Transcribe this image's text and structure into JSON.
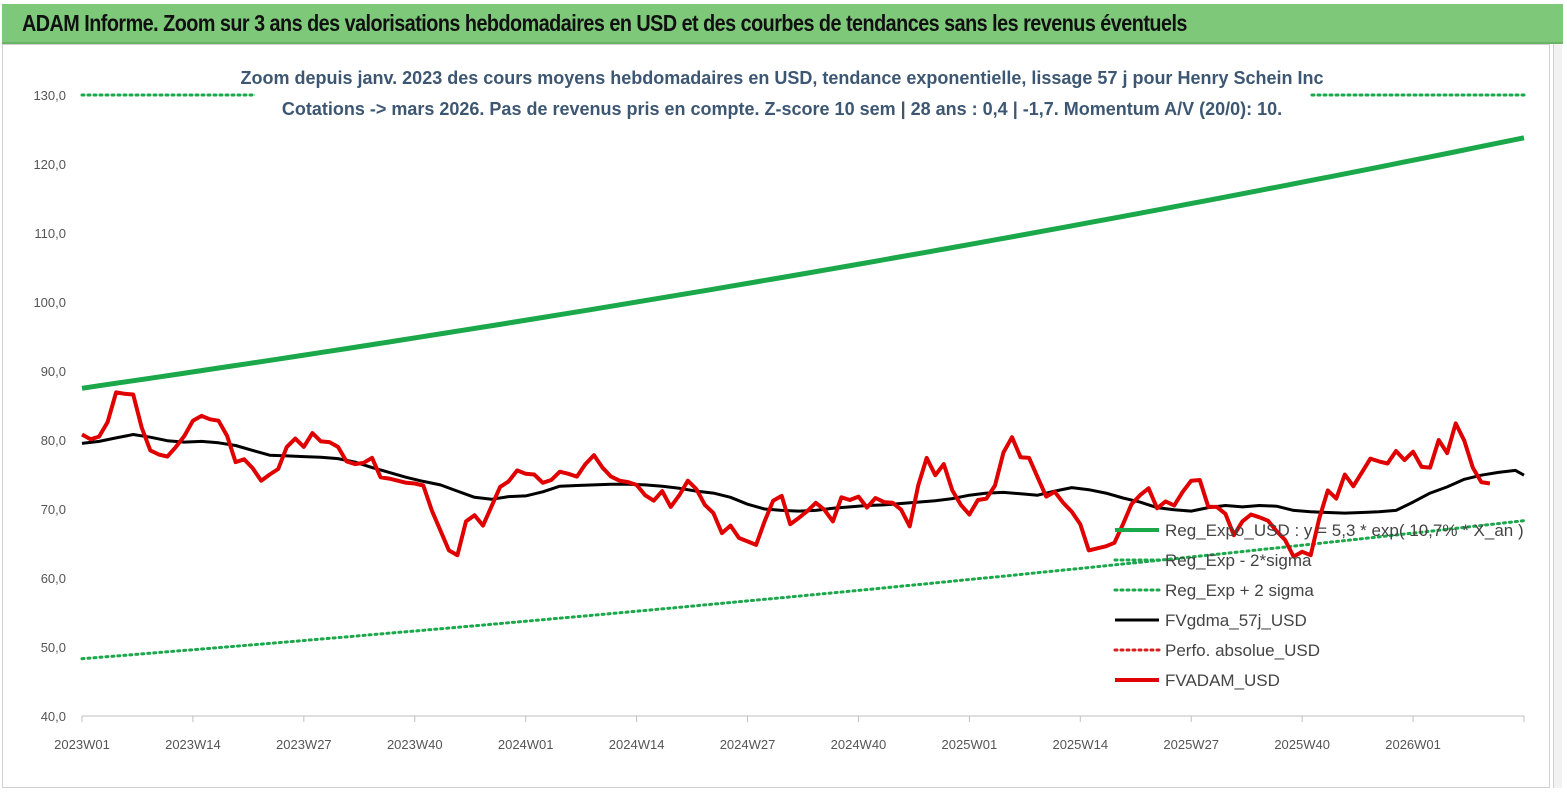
{
  "header": {
    "title": "ADAM Informe. Zoom sur 3 ans des valorisations hebdomadaires en USD et des courbes de tendances sans les revenus éventuels"
  },
  "colors": {
    "header_bg": "#7ec87a",
    "trend": "#1aa84a",
    "sigma": "#1aa84a",
    "fvgdma": "#000000",
    "perfo": "#d62020",
    "fvadam": "#e00000"
  },
  "chart_data": {
    "type": "line",
    "title_line1": "Zoom depuis janv. 2023 des cours moyens hebdomadaires en USD, tendance exponentielle, lissage 57 j pour Henry Schein Inc",
    "title_line2": "Cotations -> mars 2026. Pas de revenus pris en compte. Z-score 10 sem | 28 ans : 0,4 | -1,7. Momentum A/V (20/0): 10.",
    "ylim": [
      40,
      130
    ],
    "yticks": [
      "40,0",
      "50,0",
      "60,0",
      "70,0",
      "80,0",
      "90,0",
      "100,0",
      "110,0",
      "120,0",
      "130,0"
    ],
    "xticks": [
      "2023W01",
      "2023W14",
      "2023W27",
      "2023W40",
      "2024W01",
      "2024W14",
      "2024W27",
      "2024W40",
      "2025W01",
      "2025W14",
      "2025W27",
      "2025W40",
      "2026W01"
    ],
    "x_range_weeks": [
      0,
      169
    ],
    "legend_position": "bottom-right",
    "series": [
      {
        "name": "Reg_Expo_USD : y = 5,3 * exp( 10,7% * X_an )",
        "style": "solid-thick",
        "color": "#1aa84a",
        "start": [
          0,
          87.5
        ],
        "end": [
          169,
          123.8
        ]
      },
      {
        "name": "Reg_Exp - 2*sigma",
        "style": "dotted",
        "color": "#1aa84a",
        "start": [
          0,
          48.3
        ],
        "end": [
          169,
          68.3
        ]
      },
      {
        "name": "Reg_Exp + 2 sigma",
        "style": "dotted",
        "color": "#1aa84a",
        "points": [
          [
            0,
            130
          ],
          [
            20,
            130
          ],
          [
            145,
            130
          ],
          [
            169,
            130
          ]
        ]
      },
      {
        "name": "FVgdma_57j_USD",
        "style": "solid",
        "color": "#000000",
        "points": [
          [
            0,
            79.5
          ],
          [
            2,
            79.8
          ],
          [
            4,
            80.3
          ],
          [
            6,
            80.8
          ],
          [
            8,
            80.4
          ],
          [
            10,
            79.9
          ],
          [
            12,
            79.7
          ],
          [
            14,
            79.8
          ],
          [
            16,
            79.6
          ],
          [
            18,
            79.2
          ],
          [
            20,
            78.5
          ],
          [
            22,
            77.8
          ],
          [
            24,
            77.7
          ],
          [
            26,
            77.6
          ],
          [
            28,
            77.5
          ],
          [
            30,
            77.3
          ],
          [
            32,
            76.8
          ],
          [
            34,
            76.0
          ],
          [
            36,
            75.3
          ],
          [
            38,
            74.6
          ],
          [
            40,
            74.0
          ],
          [
            42,
            73.5
          ],
          [
            44,
            72.6
          ],
          [
            46,
            71.7
          ],
          [
            48,
            71.4
          ],
          [
            50,
            71.8
          ],
          [
            52,
            71.9
          ],
          [
            54,
            72.5
          ],
          [
            56,
            73.3
          ],
          [
            58,
            73.4
          ],
          [
            60,
            73.5
          ],
          [
            62,
            73.6
          ],
          [
            64,
            73.6
          ],
          [
            66,
            73.5
          ],
          [
            68,
            73.3
          ],
          [
            70,
            73.0
          ],
          [
            72,
            72.6
          ],
          [
            74,
            72.3
          ],
          [
            76,
            71.7
          ],
          [
            78,
            70.7
          ],
          [
            80,
            70.0
          ],
          [
            82,
            69.8
          ],
          [
            84,
            69.7
          ],
          [
            86,
            69.8
          ],
          [
            88,
            70.1
          ],
          [
            90,
            70.3
          ],
          [
            92,
            70.5
          ],
          [
            94,
            70.6
          ],
          [
            96,
            70.8
          ],
          [
            98,
            71.0
          ],
          [
            100,
            71.2
          ],
          [
            102,
            71.5
          ],
          [
            104,
            72.0
          ],
          [
            106,
            72.3
          ],
          [
            108,
            72.4
          ],
          [
            110,
            72.2
          ],
          [
            112,
            72.0
          ],
          [
            114,
            72.6
          ],
          [
            116,
            73.1
          ],
          [
            118,
            72.8
          ],
          [
            120,
            72.3
          ],
          [
            122,
            71.6
          ],
          [
            124,
            71.0
          ],
          [
            126,
            70.2
          ],
          [
            128,
            69.9
          ],
          [
            130,
            69.7
          ],
          [
            132,
            70.2
          ],
          [
            134,
            70.5
          ],
          [
            136,
            70.3
          ],
          [
            138,
            70.5
          ],
          [
            140,
            70.4
          ],
          [
            142,
            69.8
          ],
          [
            144,
            69.6
          ],
          [
            146,
            69.5
          ],
          [
            148,
            69.4
          ],
          [
            150,
            69.5
          ],
          [
            152,
            69.6
          ],
          [
            154,
            69.8
          ],
          [
            156,
            71.0
          ],
          [
            158,
            72.3
          ],
          [
            160,
            73.2
          ],
          [
            162,
            74.3
          ],
          [
            164,
            74.9
          ],
          [
            166,
            75.3
          ],
          [
            168,
            75.6
          ],
          [
            169,
            74.9
          ]
        ]
      },
      {
        "name": "Perfo. absolue_USD",
        "style": "dotted",
        "color": "#d62020",
        "points": []
      },
      {
        "name": "FVADAM_USD",
        "style": "solid-thick",
        "color": "#e00000",
        "points": [
          [
            0,
            80.8
          ],
          [
            1,
            80.1
          ],
          [
            2,
            80.5
          ],
          [
            3,
            82.6
          ],
          [
            4,
            86.9
          ],
          [
            5,
            86.7
          ],
          [
            6,
            86.6
          ],
          [
            7,
            81.8
          ],
          [
            8,
            78.5
          ],
          [
            9,
            77.9
          ],
          [
            10,
            77.6
          ],
          [
            11,
            79.0
          ],
          [
            12,
            80.6
          ],
          [
            13,
            82.8
          ],
          [
            14,
            83.5
          ],
          [
            15,
            83.0
          ],
          [
            16,
            82.8
          ],
          [
            17,
            80.6
          ],
          [
            18,
            76.8
          ],
          [
            19,
            77.2
          ],
          [
            20,
            75.9
          ],
          [
            21,
            74.1
          ],
          [
            22,
            75.0
          ],
          [
            23,
            75.8
          ],
          [
            24,
            79.0
          ],
          [
            25,
            80.2
          ],
          [
            26,
            79.0
          ],
          [
            27,
            81.0
          ],
          [
            28,
            79.8
          ],
          [
            29,
            79.7
          ],
          [
            30,
            79.0
          ],
          [
            31,
            76.9
          ],
          [
            32,
            76.5
          ],
          [
            33,
            76.7
          ],
          [
            34,
            77.4
          ],
          [
            35,
            74.6
          ],
          [
            36,
            74.4
          ],
          [
            37,
            74.1
          ],
          [
            38,
            73.8
          ],
          [
            39,
            73.7
          ],
          [
            40,
            73.4
          ],
          [
            41,
            69.8
          ],
          [
            42,
            66.9
          ],
          [
            43,
            64.0
          ],
          [
            44,
            63.3
          ],
          [
            45,
            68.2
          ],
          [
            46,
            69.1
          ],
          [
            47,
            67.6
          ],
          [
            48,
            70.4
          ],
          [
            49,
            73.2
          ],
          [
            50,
            74.0
          ],
          [
            51,
            75.6
          ],
          [
            52,
            75.1
          ],
          [
            53,
            75.0
          ],
          [
            54,
            73.8
          ],
          [
            55,
            74.2
          ],
          [
            56,
            75.4
          ],
          [
            57,
            75.1
          ],
          [
            58,
            74.7
          ],
          [
            59,
            76.5
          ],
          [
            60,
            77.8
          ],
          [
            61,
            76.0
          ],
          [
            62,
            74.7
          ],
          [
            63,
            74.1
          ],
          [
            64,
            73.9
          ],
          [
            65,
            73.5
          ],
          [
            66,
            72.0
          ],
          [
            67,
            71.2
          ],
          [
            68,
            72.6
          ],
          [
            69,
            70.3
          ],
          [
            70,
            72.0
          ],
          [
            71,
            74.1
          ],
          [
            72,
            72.9
          ],
          [
            73,
            70.6
          ],
          [
            74,
            69.4
          ],
          [
            75,
            66.5
          ],
          [
            76,
            67.6
          ],
          [
            77,
            65.8
          ],
          [
            78,
            65.3
          ],
          [
            79,
            64.8
          ],
          [
            80,
            68.2
          ],
          [
            81,
            71.2
          ],
          [
            82,
            71.9
          ],
          [
            83,
            67.8
          ],
          [
            84,
            68.7
          ],
          [
            85,
            69.7
          ],
          [
            86,
            70.9
          ],
          [
            87,
            69.9
          ],
          [
            88,
            68.2
          ],
          [
            89,
            71.7
          ],
          [
            90,
            71.3
          ],
          [
            91,
            71.8
          ],
          [
            92,
            70.2
          ],
          [
            93,
            71.6
          ],
          [
            94,
            71.0
          ],
          [
            95,
            70.9
          ],
          [
            96,
            69.9
          ],
          [
            97,
            67.5
          ],
          [
            98,
            73.4
          ],
          [
            99,
            77.4
          ],
          [
            100,
            74.9
          ],
          [
            101,
            76.5
          ],
          [
            102,
            72.7
          ],
          [
            103,
            70.6
          ],
          [
            104,
            69.2
          ],
          [
            105,
            71.3
          ],
          [
            106,
            71.5
          ],
          [
            107,
            73.4
          ],
          [
            108,
            78.2
          ],
          [
            109,
            80.4
          ],
          [
            110,
            77.5
          ],
          [
            111,
            77.4
          ],
          [
            112,
            74.6
          ],
          [
            113,
            71.8
          ],
          [
            114,
            72.5
          ],
          [
            115,
            70.9
          ],
          [
            116,
            69.6
          ],
          [
            117,
            67.8
          ],
          [
            118,
            64.0
          ],
          [
            119,
            64.3
          ],
          [
            120,
            64.6
          ],
          [
            121,
            65.1
          ],
          [
            122,
            67.8
          ],
          [
            123,
            70.7
          ],
          [
            124,
            72.0
          ],
          [
            125,
            73.0
          ],
          [
            126,
            70.1
          ],
          [
            127,
            71.1
          ],
          [
            128,
            70.5
          ],
          [
            129,
            72.5
          ],
          [
            130,
            74.1
          ],
          [
            131,
            74.2
          ],
          [
            132,
            70.3
          ],
          [
            133,
            70.3
          ],
          [
            134,
            69.3
          ],
          [
            135,
            66.2
          ],
          [
            136,
            68.2
          ],
          [
            137,
            69.2
          ],
          [
            138,
            68.8
          ],
          [
            139,
            68.3
          ],
          [
            140,
            66.8
          ],
          [
            141,
            65.5
          ],
          [
            142,
            63.1
          ],
          [
            143,
            63.8
          ],
          [
            144,
            63.3
          ],
          [
            145,
            68.6
          ],
          [
            146,
            72.7
          ],
          [
            147,
            71.5
          ],
          [
            148,
            75.0
          ],
          [
            149,
            73.3
          ],
          [
            150,
            75.3
          ],
          [
            151,
            77.3
          ],
          [
            152,
            76.9
          ],
          [
            153,
            76.6
          ],
          [
            154,
            78.4
          ],
          [
            155,
            77.1
          ],
          [
            156,
            78.3
          ],
          [
            157,
            76.1
          ],
          [
            158,
            76.0
          ],
          [
            159,
            80.0
          ],
          [
            160,
            78.1
          ],
          [
            161,
            82.4
          ],
          [
            162,
            79.9
          ],
          [
            163,
            76.0
          ],
          [
            164,
            73.9
          ],
          [
            165,
            73.7
          ]
        ]
      }
    ]
  }
}
